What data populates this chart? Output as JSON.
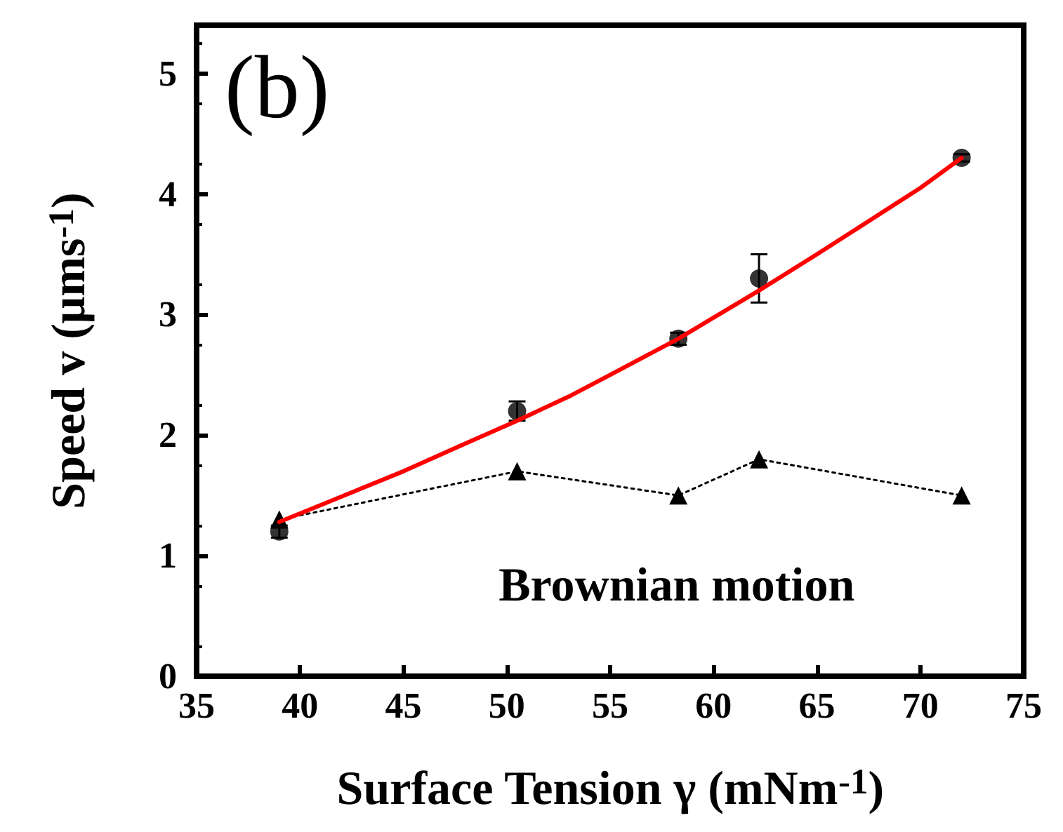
{
  "chart_data": {
    "type": "scatter",
    "xlabel": "Surface Tension γ (mNm$^{-1}$)",
    "ylabel": "Speed v (μms$^{-1}$)",
    "annotations": [
      "(b)"
    ],
    "xlim": [
      35,
      75
    ],
    "xticks": [
      35,
      40,
      45,
      50,
      55,
      60,
      65,
      70,
      75
    ],
    "ylim": [
      0,
      5.4
    ],
    "yticks": [
      0,
      1,
      2,
      3,
      4,
      5
    ],
    "grid": false,
    "legend": false,
    "series": [
      {
        "color": "#000000",
        "marker": "circle",
        "x": [
          39,
          50.5,
          58.3,
          62.2,
          72
        ],
        "values": [
          1.2,
          2.2,
          2.8,
          3.3,
          4.3
        ],
        "errors": [
          0.05,
          0.08,
          0.05,
          0.2,
          0.03
        ]
      },
      {
        "type": "line",
        "color": "#ff0000",
        "marker": "none",
        "line_style": "solid",
        "x": [
          39,
          42,
          45,
          48,
          50.5,
          53,
          55,
          58.3,
          62.2,
          65,
          67,
          70,
          72
        ],
        "values": [
          1.28,
          1.49,
          1.7,
          1.93,
          2.12,
          2.32,
          2.5,
          2.8,
          3.2,
          3.5,
          3.72,
          4.05,
          4.3
        ]
      },
      {
        "type": "line",
        "name": "Brownian motion",
        "color": "#000000",
        "marker": "triangle",
        "line_style": "dotted",
        "x": [
          39,
          50.5,
          58.3,
          62.2,
          72
        ],
        "values": [
          1.3,
          1.7,
          1.5,
          1.8,
          1.5
        ]
      }
    ]
  }
}
